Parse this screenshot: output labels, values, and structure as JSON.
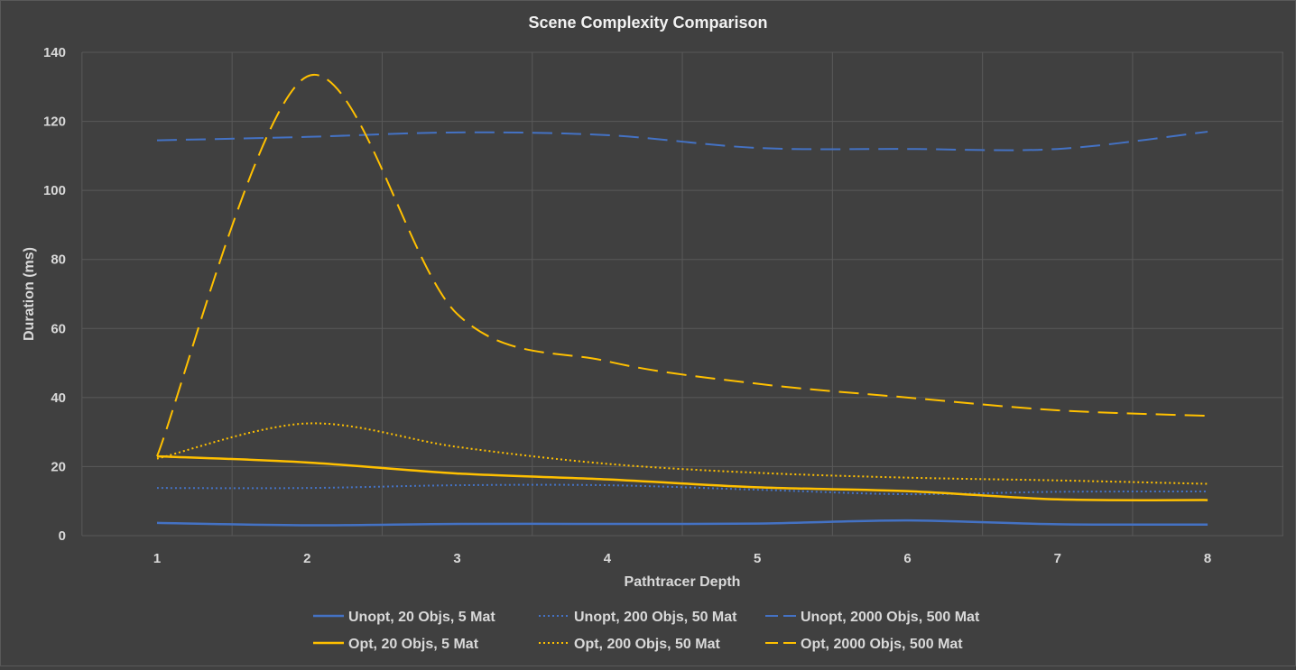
{
  "chart_data": {
    "type": "line",
    "title": "Scene Complexity Comparison",
    "xlabel": "Pathtracer Depth",
    "ylabel": "Duration (ms)",
    "x": [
      1,
      2,
      3,
      4,
      5,
      6,
      7,
      8
    ],
    "xlim": [
      1,
      8
    ],
    "ylim": [
      0,
      140
    ],
    "yticks": [
      0,
      20,
      40,
      60,
      80,
      100,
      120,
      140
    ],
    "grid": true,
    "legend_position": "bottom",
    "series": [
      {
        "name": "Unopt, 20 Objs, 5 Mat",
        "color": "#4472c4",
        "style": "solid",
        "values": [
          3.7,
          3.0,
          3.4,
          3.4,
          3.5,
          4.4,
          3.3,
          3.2
        ]
      },
      {
        "name": "Unopt, 200 Objs, 50 Mat",
        "color": "#4472c4",
        "style": "dotted",
        "values": [
          13.8,
          13.8,
          14.6,
          14.6,
          13.3,
          12.0,
          12.7,
          12.8
        ]
      },
      {
        "name": "Unopt, 2000 Objs, 500 Mat",
        "color": "#4472c4",
        "style": "dashed",
        "values": [
          114.5,
          115.5,
          116.8,
          116.0,
          112.3,
          112.0,
          112.0,
          117.0
        ]
      },
      {
        "name": "Opt, 20 Objs, 5 Mat",
        "color": "#ffc000",
        "style": "solid",
        "values": [
          23.0,
          21.2,
          18.0,
          16.3,
          14.0,
          12.9,
          10.5,
          10.3
        ]
      },
      {
        "name": "Opt, 200 Objs, 50 Mat",
        "color": "#ffc000",
        "style": "dotted",
        "values": [
          22.3,
          32.5,
          25.7,
          20.8,
          18.2,
          16.8,
          16.0,
          15.0
        ]
      },
      {
        "name": "Opt, 2000 Objs, 500 Mat",
        "color": "#ffc000",
        "style": "dashed",
        "values": [
          23.0,
          133.0,
          64.2,
          50.5,
          44.0,
          40.0,
          36.3,
          34.7
        ]
      }
    ]
  }
}
